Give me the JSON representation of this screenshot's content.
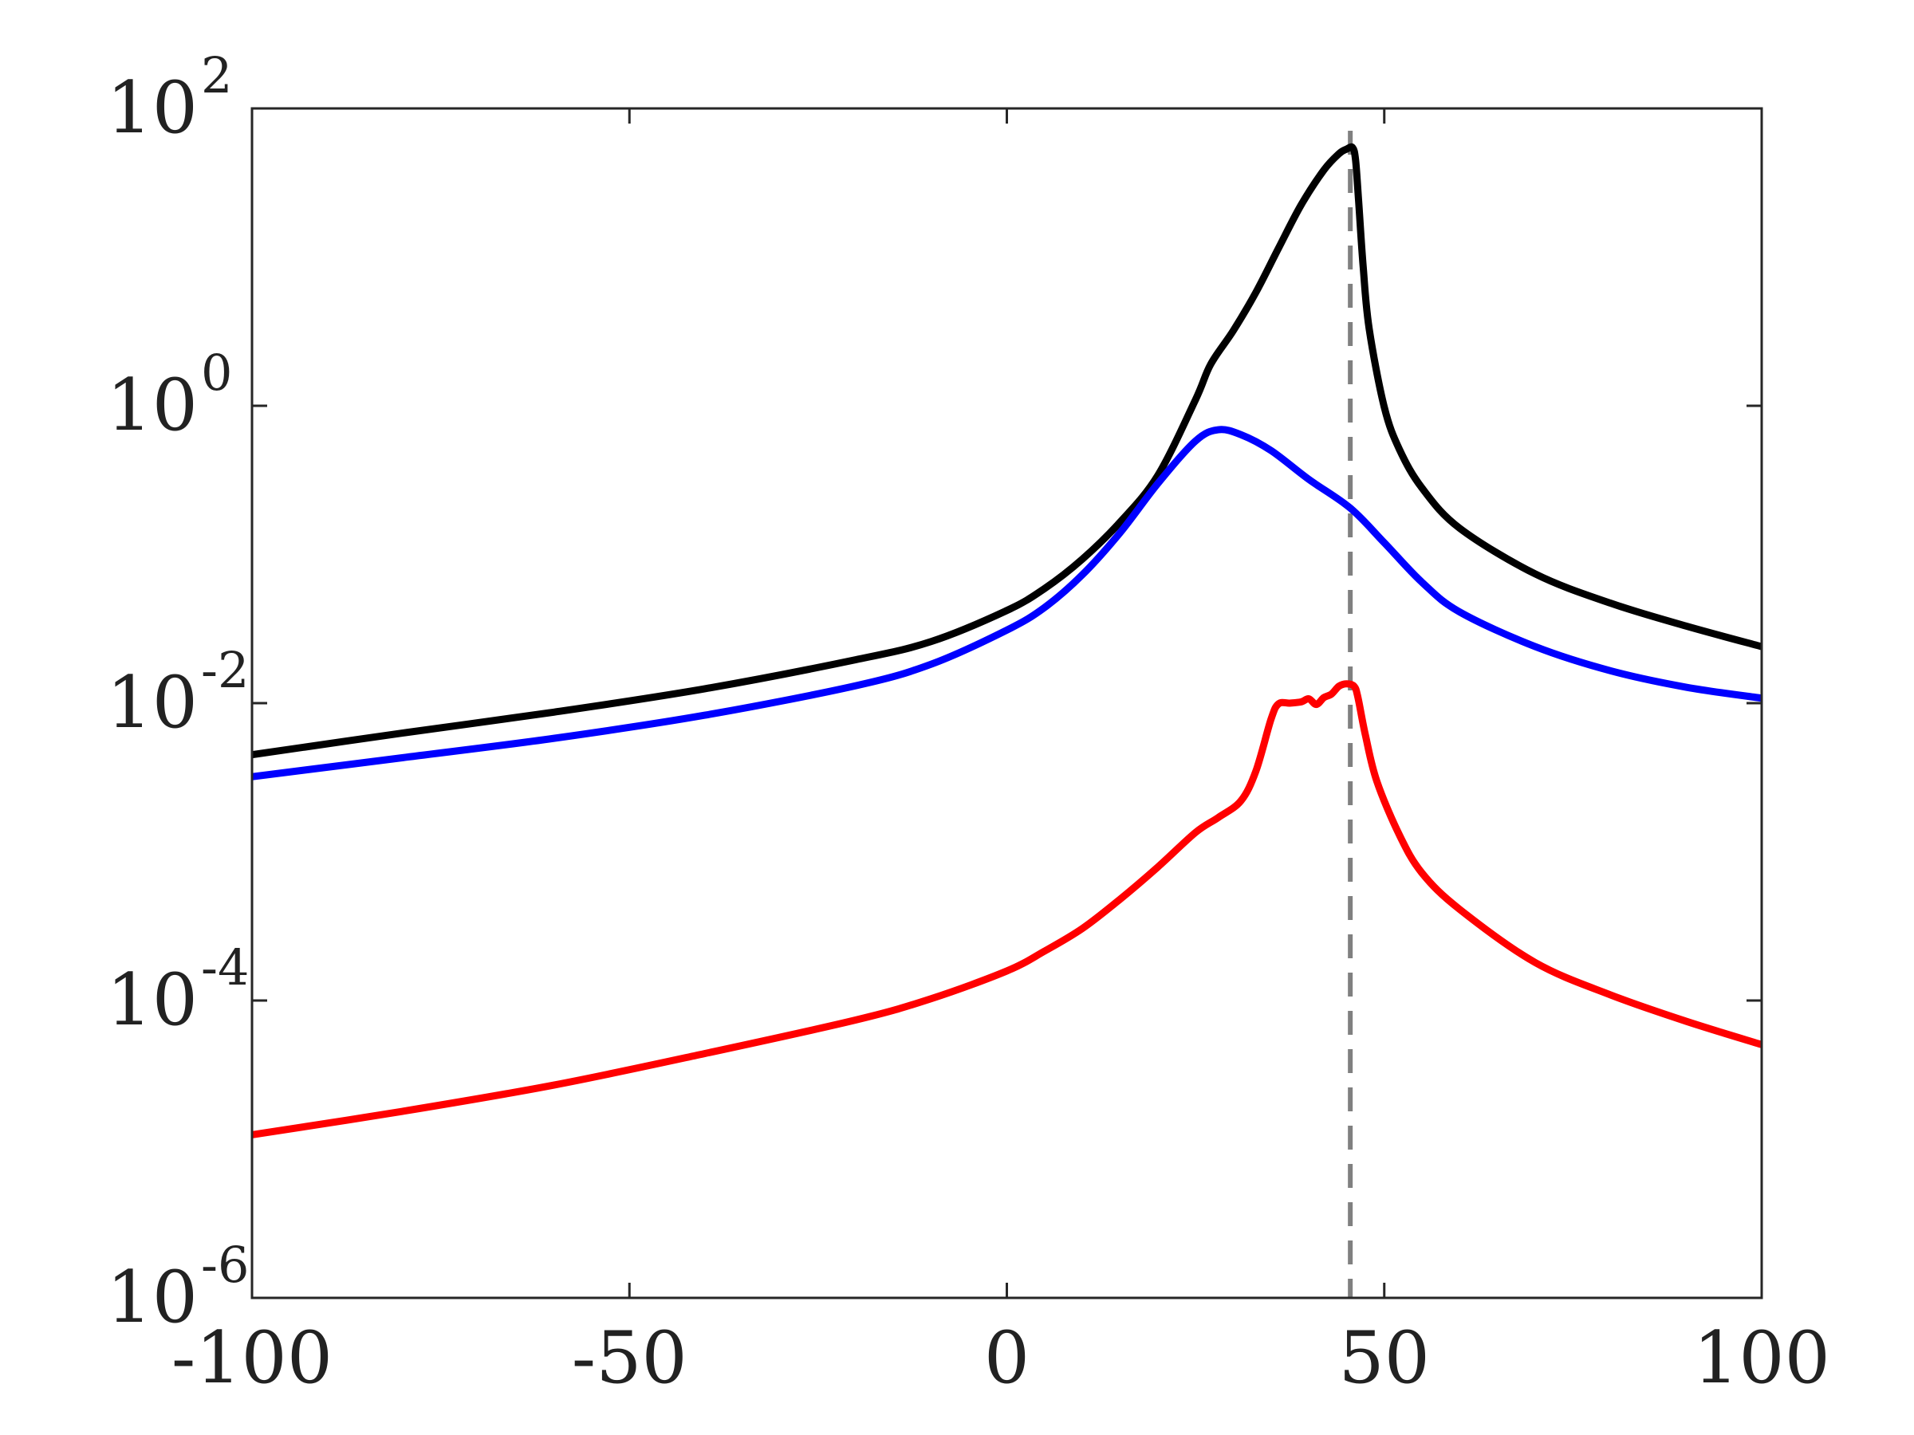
{
  "chart_data": {
    "type": "line",
    "title": "",
    "xlabel": "",
    "ylabel": "",
    "xlim": [
      -100,
      100
    ],
    "ylim": [
      1e-06,
      100
    ],
    "yscale": "log",
    "grid": false,
    "x_ticks": [
      -100,
      -50,
      0,
      50,
      100
    ],
    "x_tick_labels": [
      "-100",
      "-50",
      "0",
      "50",
      "100"
    ],
    "y_ticks": [
      1e-06,
      0.0001,
      0.01,
      1,
      100
    ],
    "y_tick_labels": [
      {
        "base": "10",
        "exp": "-6"
      },
      {
        "base": "10",
        "exp": "-4"
      },
      {
        "base": "10",
        "exp": "-2"
      },
      {
        "base": "10",
        "exp": "0"
      },
      {
        "base": "10",
        "exp": "2"
      }
    ],
    "reference_line": {
      "x": 45.5,
      "color": "#808080",
      "style": "dashed"
    },
    "series": [
      {
        "color": "#000000",
        "points": [
          [
            -100,
            0.0045
          ],
          [
            -80,
            0.0063
          ],
          [
            -60,
            0.0087
          ],
          [
            -40,
            0.0125
          ],
          [
            -20,
            0.0196
          ],
          [
            -10,
            0.026
          ],
          [
            0,
            0.042
          ],
          [
            5,
            0.059
          ],
          [
            10,
            0.093
          ],
          [
            15,
            0.165
          ],
          [
            20,
            0.34
          ],
          [
            25,
            1.1
          ],
          [
            27,
            1.9
          ],
          [
            30,
            3.2
          ],
          [
            33,
            5.8
          ],
          [
            36,
            11.5
          ],
          [
            39,
            22.5
          ],
          [
            42,
            38.5
          ],
          [
            44,
            49.6
          ],
          [
            45,
            53.2
          ],
          [
            45.8,
            54.5
          ],
          [
            46.2,
            45
          ],
          [
            46.6,
            24
          ],
          [
            47.2,
            8.7
          ],
          [
            48,
            3.3
          ],
          [
            50,
            0.98
          ],
          [
            52,
            0.51
          ],
          [
            55,
            0.28
          ],
          [
            60,
            0.15
          ],
          [
            70,
            0.074
          ],
          [
            80,
            0.047
          ],
          [
            90,
            0.033
          ],
          [
            100,
            0.024
          ]
        ]
      },
      {
        "color": "#0000ff",
        "points": [
          [
            -100,
            0.0032
          ],
          [
            -80,
            0.0043
          ],
          [
            -60,
            0.0058
          ],
          [
            -40,
            0.0083
          ],
          [
            -20,
            0.0131
          ],
          [
            -10,
            0.0183
          ],
          [
            0,
            0.031
          ],
          [
            5,
            0.044
          ],
          [
            10,
            0.073
          ],
          [
            15,
            0.14
          ],
          [
            20,
            0.3
          ],
          [
            25,
            0.58
          ],
          [
            28,
            0.69
          ],
          [
            31,
            0.64
          ],
          [
            35,
            0.5
          ],
          [
            40,
            0.32
          ],
          [
            45.5,
            0.205
          ],
          [
            50,
            0.12
          ],
          [
            55,
            0.065
          ],
          [
            60,
            0.041
          ],
          [
            70,
            0.024
          ],
          [
            80,
            0.0165
          ],
          [
            90,
            0.0128
          ],
          [
            100,
            0.0108
          ]
        ]
      },
      {
        "color": "#ff0000",
        "points": [
          [
            -100,
            1.25e-05
          ],
          [
            -80,
            1.8e-05
          ],
          [
            -60,
            2.7e-05
          ],
          [
            -40,
            4.4e-05
          ],
          [
            -20,
            7.4e-05
          ],
          [
            -10,
            0.000103
          ],
          [
            0,
            0.000158
          ],
          [
            5,
            0.000215
          ],
          [
            10,
            0.000305
          ],
          [
            15,
            0.00048
          ],
          [
            20,
            0.00079
          ],
          [
            25,
            0.00135
          ],
          [
            28,
            0.0017
          ],
          [
            31,
            0.0022
          ],
          [
            33,
            0.0035
          ],
          [
            35,
            0.0078
          ],
          [
            36,
            0.0099
          ],
          [
            37.5,
            0.01
          ],
          [
            39,
            0.0102
          ],
          [
            40,
            0.0107
          ],
          [
            41,
            0.0098
          ],
          [
            42,
            0.0109
          ],
          [
            43,
            0.0115
          ],
          [
            44,
            0.013
          ],
          [
            45,
            0.0135
          ],
          [
            46,
            0.013
          ],
          [
            46.5,
            0.011
          ],
          [
            47.5,
            0.0061
          ],
          [
            49,
            0.003
          ],
          [
            52,
            0.0013
          ],
          [
            55,
            0.00072
          ],
          [
            60,
            0.00041
          ],
          [
            70,
            0.00018
          ],
          [
            80,
            0.000109
          ],
          [
            90,
            7.25e-05
          ],
          [
            100,
            5.05e-05
          ]
        ]
      }
    ]
  }
}
